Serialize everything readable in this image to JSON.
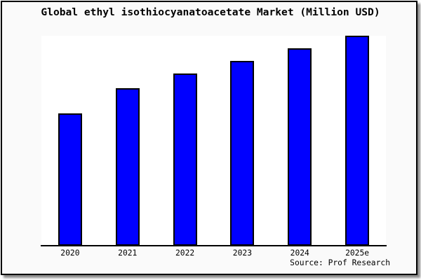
{
  "title": "Global ethyl isothiocyanatoacetate Market (Million USD)",
  "source": "Source: Prof Research",
  "colors": {
    "bar_fill": "#0000FF",
    "bar_border": "#000000",
    "figure_background": "#FAFAFA",
    "plot_background": "#FFFFFF",
    "frame_border": "#000000",
    "shadow": "#8A8A8A",
    "text": "#000000"
  },
  "chart_data": {
    "type": "bar",
    "categories": [
      "2020",
      "2021",
      "2022",
      "2023",
      "2024",
      "2025e"
    ],
    "values": [
      63,
      75,
      82,
      88,
      94,
      100
    ],
    "title": "Global ethyl isothiocyanatoacetate Market (Million USD)",
    "xlabel": "",
    "ylabel": "",
    "ylim": [
      0,
      100
    ],
    "y_axis_ticks": "hidden",
    "grid": false,
    "legend": false,
    "annotation": "Source: Prof Research"
  }
}
